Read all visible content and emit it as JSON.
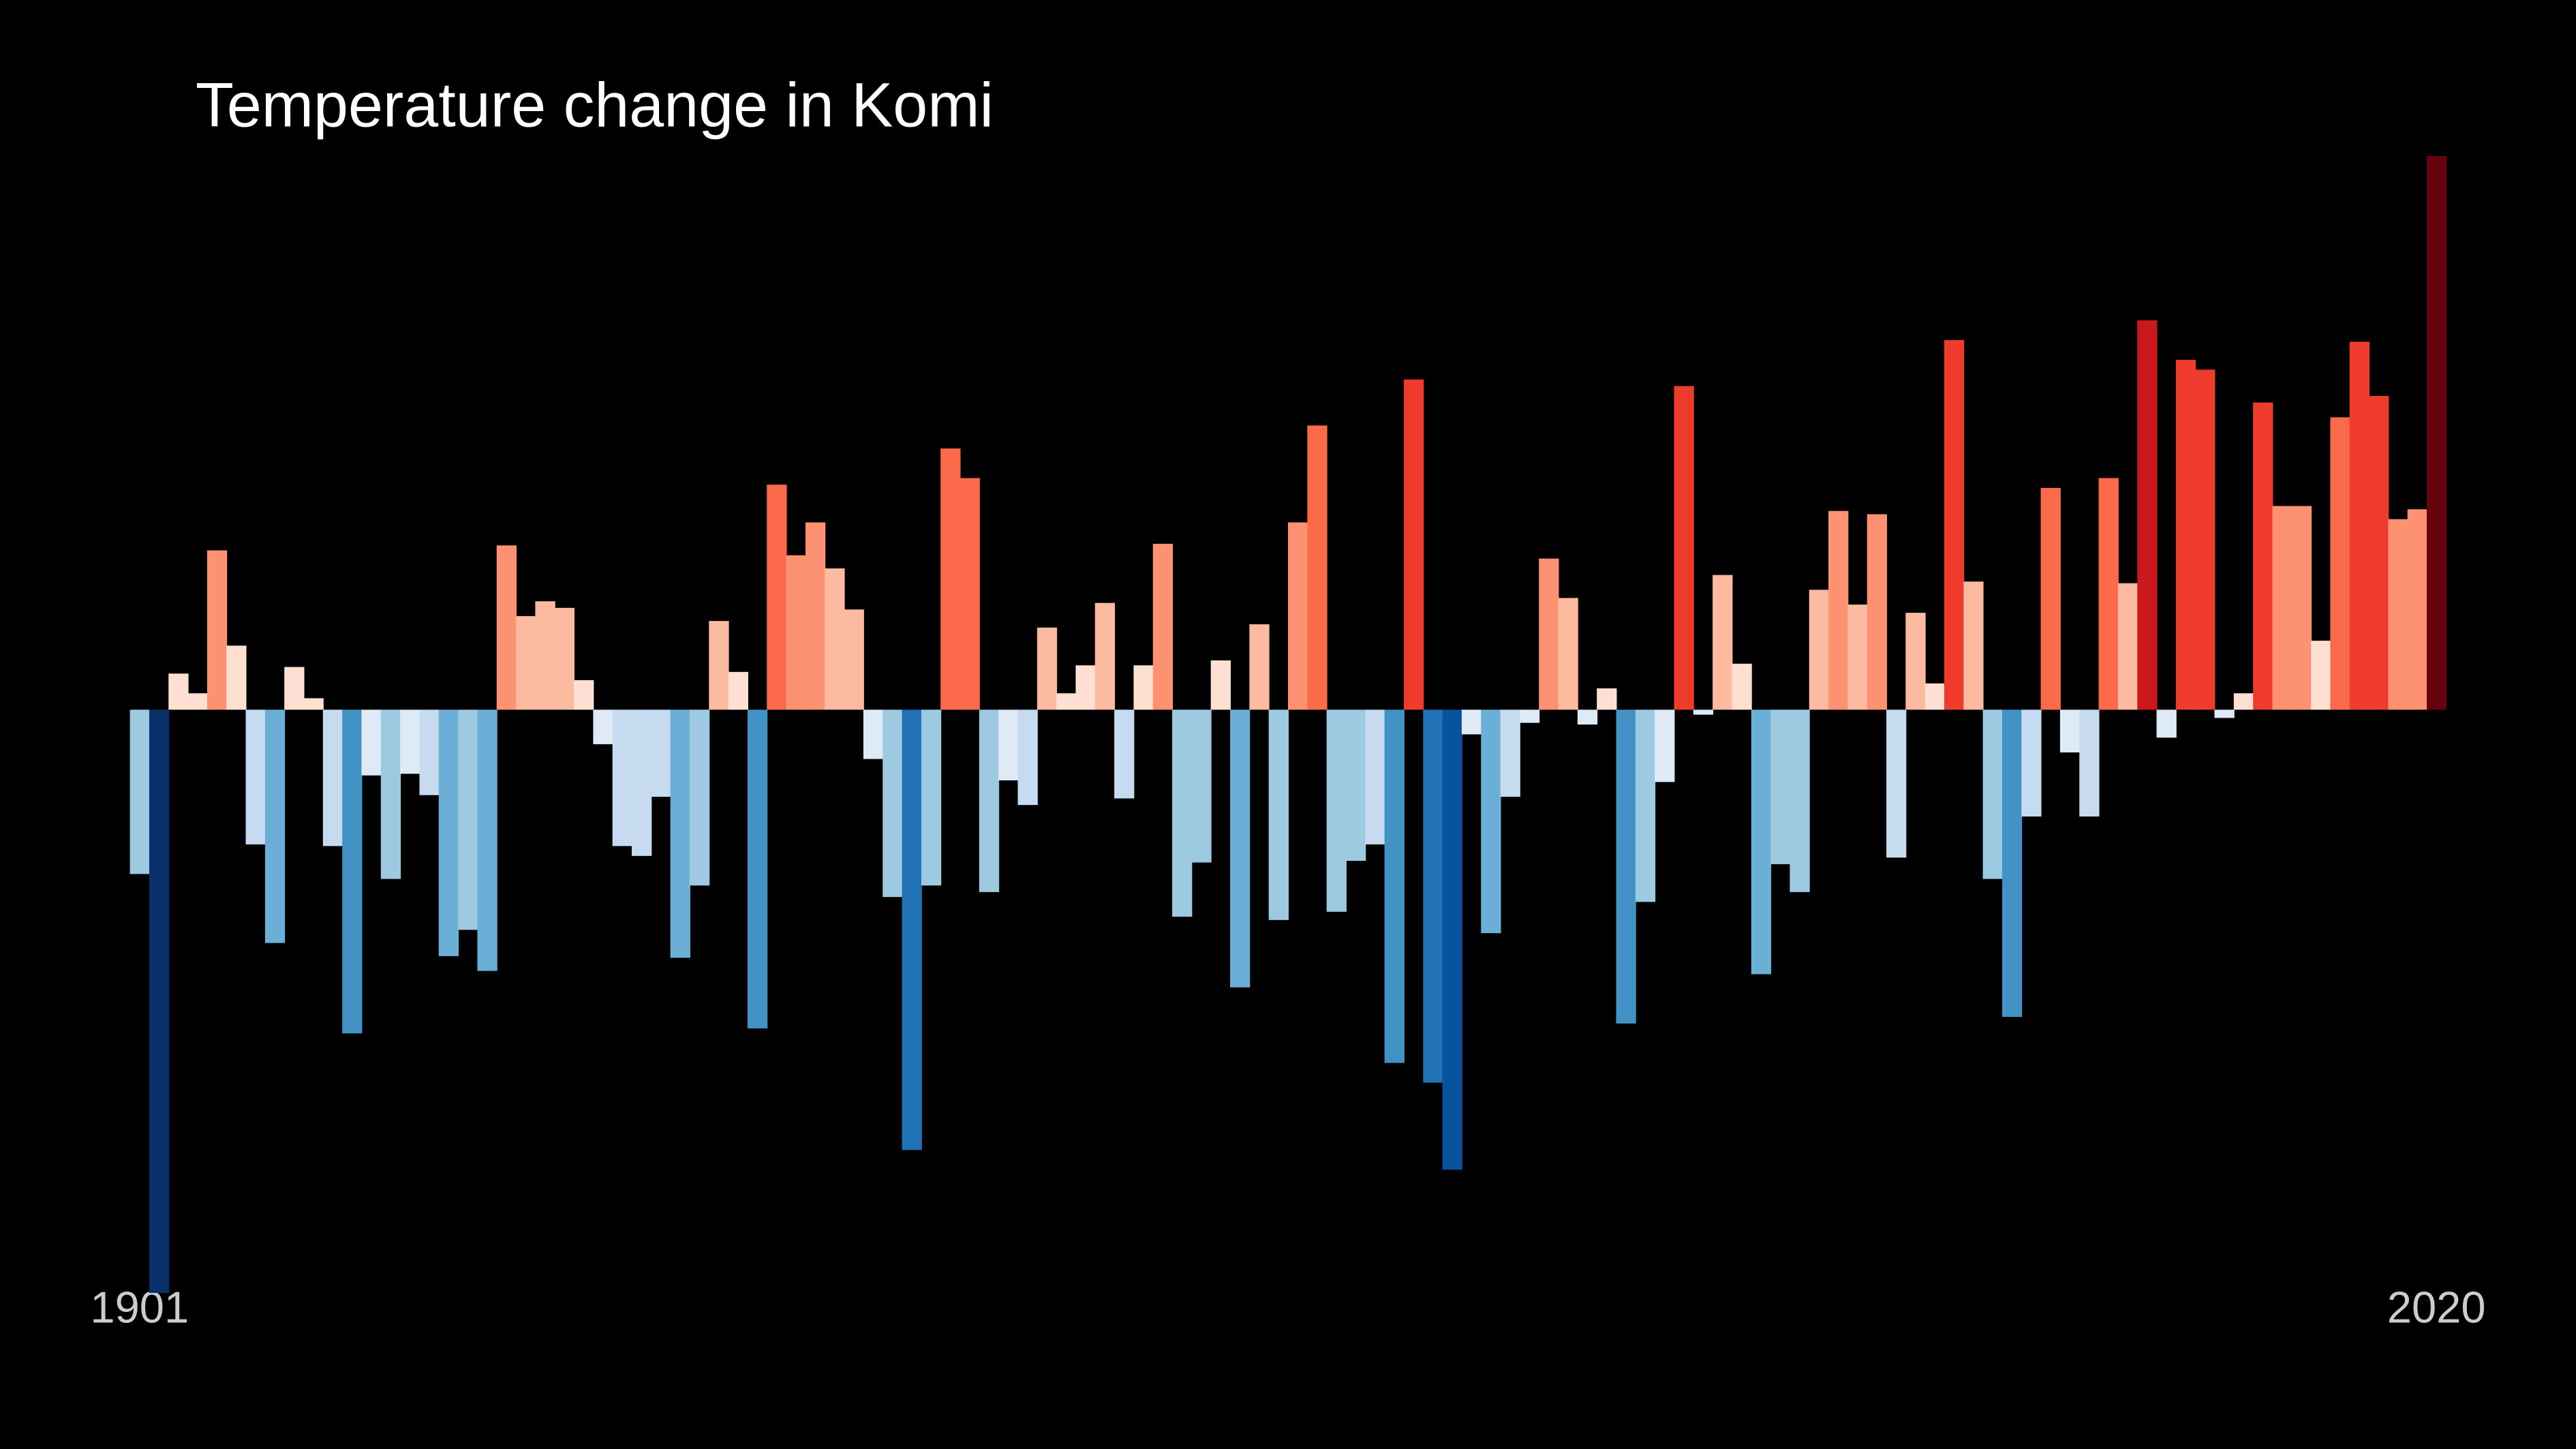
{
  "chart_data": {
    "type": "bar",
    "title": "Temperature change in Komi",
    "categories": [
      "1901",
      null,
      null,
      null,
      null,
      null,
      null,
      null,
      null,
      null,
      null,
      null,
      null,
      null,
      null,
      null,
      null,
      null,
      null,
      null,
      null,
      null,
      null,
      null,
      null,
      null,
      null,
      null,
      null,
      null,
      null,
      null,
      null,
      null,
      null,
      null,
      null,
      null,
      null,
      null,
      null,
      null,
      null,
      null,
      null,
      null,
      null,
      null,
      null,
      null,
      null,
      null,
      null,
      null,
      null,
      null,
      null,
      null,
      null,
      null,
      null,
      null,
      null,
      null,
      null,
      null,
      null,
      null,
      null,
      null,
      null,
      null,
      null,
      null,
      null,
      null,
      null,
      null,
      null,
      null,
      null,
      null,
      null,
      null,
      null,
      null,
      null,
      null,
      null,
      null,
      null,
      null,
      null,
      null,
      null,
      null,
      null,
      null,
      null,
      null,
      null,
      null,
      null,
      null,
      null,
      null,
      null,
      null,
      null,
      null,
      null,
      null,
      null,
      null,
      null,
      null,
      null,
      null,
      null,
      "2020"
    ],
    "values": [
      -1.0,
      -3.55,
      0.22,
      0.1,
      0.97,
      0.39,
      -0.82,
      -1.42,
      0.26,
      0.07,
      -0.83,
      -1.97,
      -0.4,
      -1.03,
      -0.39,
      -0.52,
      -1.5,
      -1.34,
      -1.59,
      1.0,
      0.57,
      0.66,
      0.62,
      0.18,
      -0.21,
      -0.83,
      -0.89,
      -0.53,
      -1.51,
      -1.07,
      0.54,
      0.23,
      -1.94,
      1.37,
      0.94,
      1.14,
      0.86,
      0.61,
      -0.3,
      -1.14,
      -2.68,
      -1.07,
      1.59,
      1.41,
      -1.11,
      -0.43,
      -0.58,
      0.5,
      0.1,
      0.27,
      0.65,
      -0.54,
      0.27,
      1.01,
      -1.26,
      -0.93,
      0.3,
      -1.69,
      0.52,
      -1.28,
      1.14,
      1.73,
      -1.23,
      -0.92,
      -0.82,
      -2.15,
      2.01,
      -2.27,
      -2.8,
      -0.15,
      -1.36,
      -0.53,
      -0.08,
      0.92,
      0.68,
      -0.09,
      0.13,
      -1.91,
      -1.17,
      -0.44,
      1.97,
      -0.03,
      0.82,
      0.28,
      -1.61,
      -0.94,
      -1.11,
      0.73,
      1.21,
      0.64,
      1.19,
      -0.9,
      0.59,
      0.16,
      2.25,
      0.78,
      -1.03,
      -1.87,
      -0.65,
      1.35,
      -0.26,
      -0.65,
      1.41,
      0.77,
      2.37,
      -0.17,
      2.13,
      2.07,
      -0.05,
      0.1,
      1.87,
      1.24,
      1.24,
      0.42,
      1.78,
      2.24,
      1.91,
      1.16,
      1.22,
      3.37
    ],
    "ylim": [
      -3.6,
      3.6
    ],
    "colormap": [
      "#08306b",
      "#08519c",
      "#2171b5",
      "#4292c6",
      "#6baed6",
      "#9ecae1",
      "#c6dbef",
      "#deebf7",
      "#fee0d2",
      "#fcbba1",
      "#fc9272",
      "#fb6a4a",
      "#ef3b2c",
      "#cb181d",
      "#a50f15",
      "#67000d"
    ],
    "background": "#000000"
  }
}
